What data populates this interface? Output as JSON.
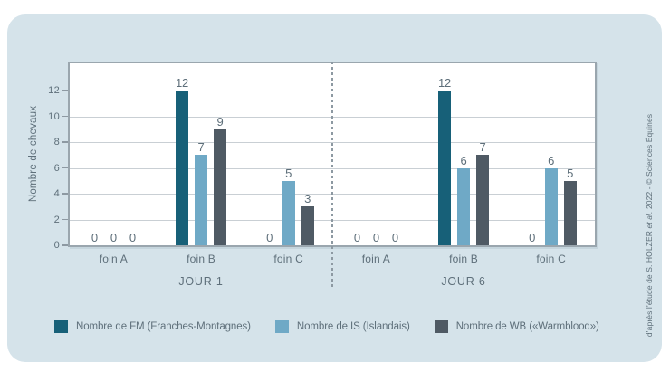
{
  "chart_data": {
    "type": "bar",
    "title": "",
    "ylabel": "Nombre de chevaux",
    "xlabel": "",
    "ylim": [
      0,
      14
    ],
    "yticks": [
      0,
      2,
      4,
      6,
      8,
      10,
      12
    ],
    "grid": true,
    "legend_position": "bottom",
    "panel_separator": "dashed-vertical",
    "categories": [
      "foin A",
      "foin B",
      "foin C"
    ],
    "groups": [
      {
        "label": "JOUR 1",
        "series": [
          {
            "name": "Nombre de FM (Franches-Montagnes)",
            "values": [
              0,
              12,
              0
            ]
          },
          {
            "name": "Nombre de IS (Islandais)",
            "values": [
              0,
              7,
              5
            ]
          },
          {
            "name": "Nombre de WB («Warmblood»)",
            "values": [
              0,
              9,
              3
            ]
          }
        ]
      },
      {
        "label": "JOUR 6",
        "series": [
          {
            "name": "Nombre de FM (Franches-Montagnes)",
            "values": [
              0,
              12,
              0
            ]
          },
          {
            "name": "Nombre de IS (Islandais)",
            "values": [
              0,
              6,
              6
            ]
          },
          {
            "name": "Nombre de WB («Warmblood»)",
            "values": [
              0,
              7,
              5
            ]
          }
        ]
      }
    ],
    "legend": [
      {
        "label": "Nombre de FM (Franches-Montagnes)",
        "color": "#176078"
      },
      {
        "label": "Nombre de IS (Islandais)",
        "color": "#6fa9c6"
      },
      {
        "label": "Nombre de WB («Warmblood»)",
        "color": "#4f5a64"
      }
    ]
  },
  "credit": {
    "prefix": "d’après l’étude de S. HOLZER ",
    "italic": "et al.",
    "suffix": " 2022 - © Sciences Équines"
  },
  "colors": {
    "card_background": "#d5e3ea",
    "plot_border": "#9aa6ae",
    "gridline": "#c9cfd4",
    "text": "#5e6f7a",
    "series_fm": "#176078",
    "series_is": "#6fa9c6",
    "series_wb": "#4f5a64"
  }
}
